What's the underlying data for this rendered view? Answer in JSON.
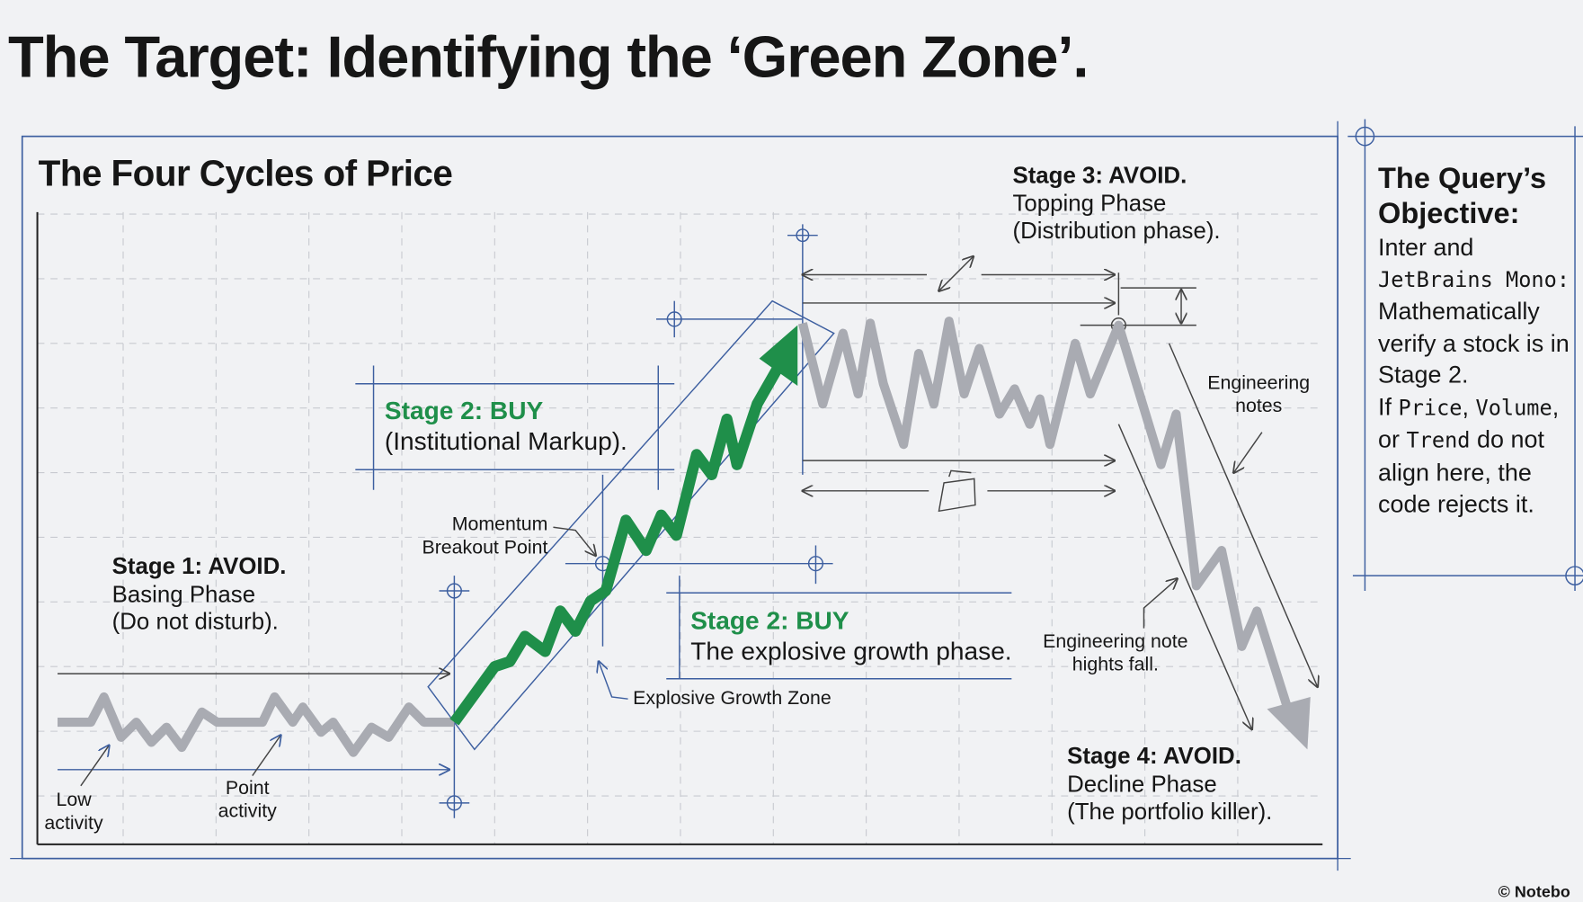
{
  "title": "The Target: Identifying the ‘Green Zone’.",
  "diagram": {
    "subtitle": "The Four Cycles of Price",
    "stage1": {
      "heading": "Stage 1: AVOID.",
      "line1": "Basing Phase",
      "line2": "(Do not disturb)."
    },
    "stage2a": {
      "heading": "Stage 2: BUY",
      "line1": "(Institutional Markup)."
    },
    "stage2b": {
      "heading_prefix": "Stage 2: ",
      "heading_buy": "BUY",
      "line1": "The explosive growth phase."
    },
    "stage3": {
      "heading": "Stage 3: AVOID.",
      "line1": "Topping Phase",
      "line2": "(Distribution phase)."
    },
    "stage4": {
      "heading": "Stage 4: AVOID.",
      "line1": "Decline Phase",
      "line2": "(The portfolio killer)."
    },
    "notes": {
      "low_activity_1": "Low",
      "low_activity_2": "activity",
      "point_activity_1": "Point",
      "point_activity_2": "activity",
      "momentum_1": "Momentum",
      "momentum_2": "Breakout Point",
      "explosive_zone": "Explosive Growth Zone",
      "eng_notes_1": "Engineering",
      "eng_notes_2": "notes",
      "eng_note_fall_1": "Engineering note",
      "eng_note_fall_2": "hights fall."
    },
    "colors": {
      "accent_green": "#1f8f4a",
      "blueprint_blue": "#3d5fa0",
      "price_gray": "#a9abb2",
      "background": "#f1f2f4"
    }
  },
  "sidebar": {
    "heading_1": "The Query’s",
    "heading_2": "Objective:",
    "t1": "Inter and",
    "m1": "JetBrains Mono:",
    "t2": "Mathematically verify a stock is in Stage 2.",
    "t3": "If ",
    "m2": "Price",
    "t4": ",",
    "m3": "Volume",
    "t5": ", or",
    "m4": "Trend",
    "t6": " do not align here, the code rejects it."
  },
  "watermark": "Notebo"
}
